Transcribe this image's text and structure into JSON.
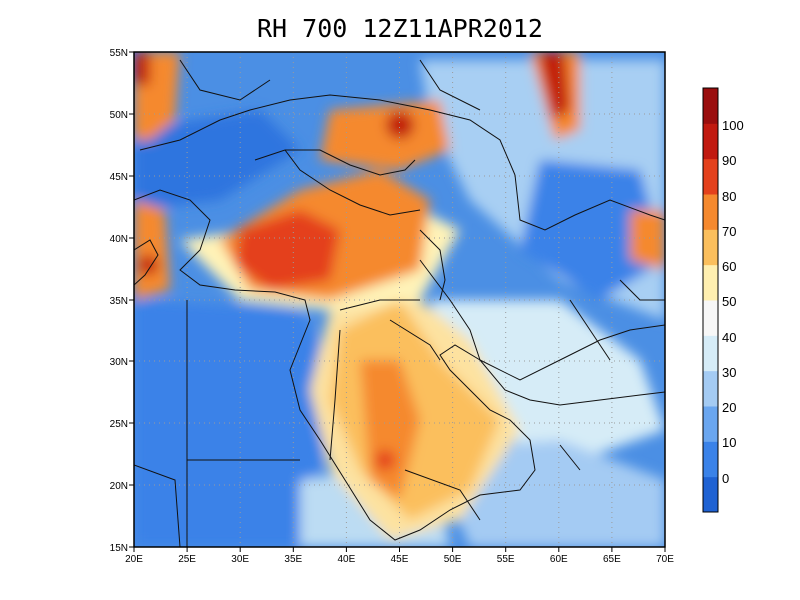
{
  "title": "RH 700 12Z11APR2012",
  "map": {
    "lon_ticks": [
      "20E",
      "25E",
      "30E",
      "35E",
      "40E",
      "45E",
      "50E",
      "55E",
      "60E",
      "65E",
      "70E"
    ],
    "lat_ticks": [
      "15N",
      "20N",
      "25N",
      "30N",
      "35N",
      "40N",
      "45N",
      "50N",
      "55N"
    ],
    "lon_range": [
      20,
      70
    ],
    "lat_range": [
      15,
      55
    ]
  },
  "colorbar": {
    "labels": [
      "0",
      "10",
      "20",
      "30",
      "40",
      "50",
      "60",
      "70",
      "80",
      "90",
      "100"
    ],
    "colors": [
      "#1f62d3",
      "#3a82e8",
      "#6aa6ef",
      "#a4cbf3",
      "#d6ecf7",
      "#f7f7f7",
      "#ffefb0",
      "#fbbf5d",
      "#f5892e",
      "#e4411c",
      "#c11a10",
      "#9a0e0e"
    ]
  }
}
